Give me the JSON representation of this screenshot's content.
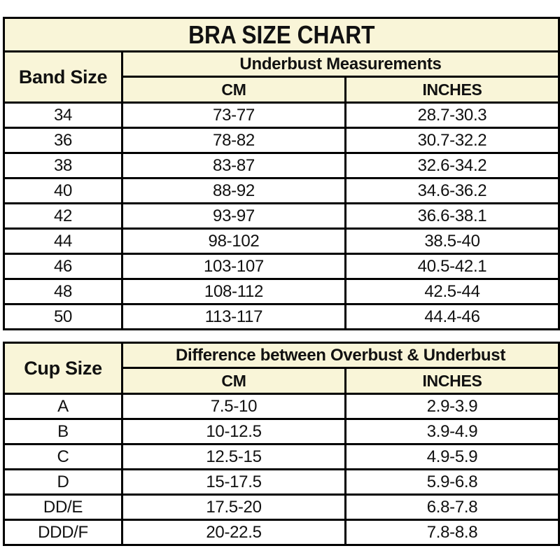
{
  "colors": {
    "header_bg": "#f9f5d8",
    "border": "#000000",
    "text": "#111111",
    "page_bg": "#ffffff"
  },
  "chart_data": [
    {
      "type": "table",
      "title": "BRA SIZE CHART",
      "corner_header": "Band Size",
      "group_header": "Underbust Measurements",
      "columns": [
        "CM",
        "INCHES"
      ],
      "rows": [
        [
          "34",
          "73-77",
          "28.7-30.3"
        ],
        [
          "36",
          "78-82",
          "30.7-32.2"
        ],
        [
          "38",
          "83-87",
          "32.6-34.2"
        ],
        [
          "40",
          "88-92",
          "34.6-36.2"
        ],
        [
          "42",
          "93-97",
          "36.6-38.1"
        ],
        [
          "44",
          "98-102",
          "38.5-40"
        ],
        [
          "46",
          "103-107",
          "40.5-42.1"
        ],
        [
          "48",
          "108-112",
          "42.5-44"
        ],
        [
          "50",
          "113-117",
          "44.4-46"
        ]
      ]
    },
    {
      "type": "table",
      "corner_header": "Cup Size",
      "group_header": "Difference between Overbust & Underbust",
      "columns": [
        "CM",
        "INCHES"
      ],
      "rows": [
        [
          "A",
          "7.5-10",
          "2.9-3.9"
        ],
        [
          "B",
          "10-12.5",
          "3.9-4.9"
        ],
        [
          "C",
          "12.5-15",
          "4.9-5.9"
        ],
        [
          "D",
          "15-17.5",
          "5.9-6.8"
        ],
        [
          "DD/E",
          "17.5-20",
          "6.8-7.8"
        ],
        [
          "DDD/F",
          "20-22.5",
          "7.8-8.8"
        ]
      ]
    }
  ]
}
